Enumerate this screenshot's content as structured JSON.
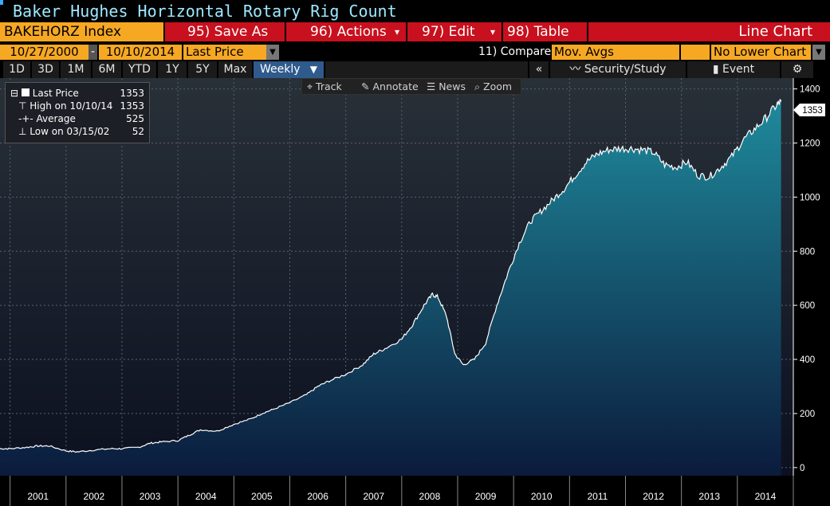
{
  "window": {
    "title": "Baker Hughes Horizontal Rotary Rig Count"
  },
  "toolbar": {
    "ticker": "BAKEHORZ Index",
    "save_as": "95) Save As",
    "actions": "96) Actions",
    "edit": "97) Edit",
    "table": "98) Table",
    "chart_type": "Line Chart",
    "start_date": "10/27/2000",
    "dash": "-",
    "end_date": "10/10/2014",
    "field": "Last Price",
    "compare_label": "11) Compare",
    "compare_value": "Mov. Avgs",
    "lower_chart": "No Lower Chart"
  },
  "ranges": [
    "1D",
    "3D",
    "1M",
    "6M",
    "YTD",
    "1Y",
    "5Y",
    "Max"
  ],
  "frequency": "Weekly",
  "right_tools": {
    "back": "«",
    "security": "Security/Study",
    "event": "Event"
  },
  "chart_tools": {
    "track": "Track",
    "annotate": "Annotate",
    "news": "News",
    "zoom": "Zoom"
  },
  "legend": [
    {
      "label": "Last Price",
      "value": "1353"
    },
    {
      "label": "High on 10/10/14",
      "value": "1353"
    },
    {
      "label": "Average",
      "value": "525"
    },
    {
      "label": "Low on 03/15/02",
      "value": "52"
    }
  ],
  "last_value_tag": "1353",
  "colors": {
    "accent_orange": "#f7a823",
    "button_red": "#c8101e",
    "title_cyan": "#9ee8ff",
    "area_top": "#1f8a9c",
    "area_bottom": "#0b1b3c"
  },
  "chart_data": {
    "type": "area",
    "x": [
      2000.82,
      2001.0,
      2001.3,
      2001.5,
      2001.7,
      2002.0,
      2002.2,
      2002.5,
      2002.8,
      2003.0,
      2003.3,
      2003.5,
      2003.7,
      2004.0,
      2004.2,
      2004.4,
      2004.7,
      2005.0,
      2005.3,
      2005.5,
      2005.7,
      2006.0,
      2006.3,
      2006.5,
      2006.7,
      2007.0,
      2007.3,
      2007.5,
      2007.7,
      2008.0,
      2008.2,
      2008.4,
      2008.55,
      2008.65,
      2008.8,
      2008.95,
      2009.1,
      2009.3,
      2009.5,
      2009.7,
      2009.9,
      2010.1,
      2010.3,
      2010.5,
      2010.7,
      2010.9,
      2011.1,
      2011.3,
      2011.5,
      2011.7,
      2011.9,
      2012.1,
      2012.3,
      2012.5,
      2012.7,
      2012.9,
      2013.1,
      2013.3,
      2013.5,
      2013.7,
      2013.9,
      2014.1,
      2014.3,
      2014.5,
      2014.7,
      2014.78
    ],
    "y": [
      70,
      70,
      75,
      80,
      80,
      62,
      58,
      65,
      70,
      70,
      75,
      90,
      95,
      100,
      120,
      140,
      135,
      160,
      180,
      200,
      215,
      240,
      270,
      300,
      320,
      345,
      380,
      420,
      440,
      475,
      530,
      600,
      640,
      630,
      560,
      420,
      380,
      400,
      460,
      600,
      720,
      830,
      910,
      950,
      990,
      1030,
      1080,
      1130,
      1160,
      1175,
      1180,
      1180,
      1175,
      1165,
      1120,
      1110,
      1130,
      1080,
      1075,
      1110,
      1150,
      1210,
      1250,
      1290,
      1340,
      1353
    ],
    "title": "",
    "xlabel": "",
    "ylabel": "",
    "xlim": [
      2000.82,
      2015.0
    ],
    "ylim": [
      -30,
      1440
    ],
    "yticks": [
      0,
      200,
      400,
      600,
      800,
      1000,
      1200,
      1400
    ],
    "xtick_labels": [
      "2001",
      "2002",
      "2003",
      "2004",
      "2005",
      "2006",
      "2007",
      "2008",
      "2009",
      "2010",
      "2011",
      "2012",
      "2013",
      "2014"
    ],
    "grid": true
  }
}
